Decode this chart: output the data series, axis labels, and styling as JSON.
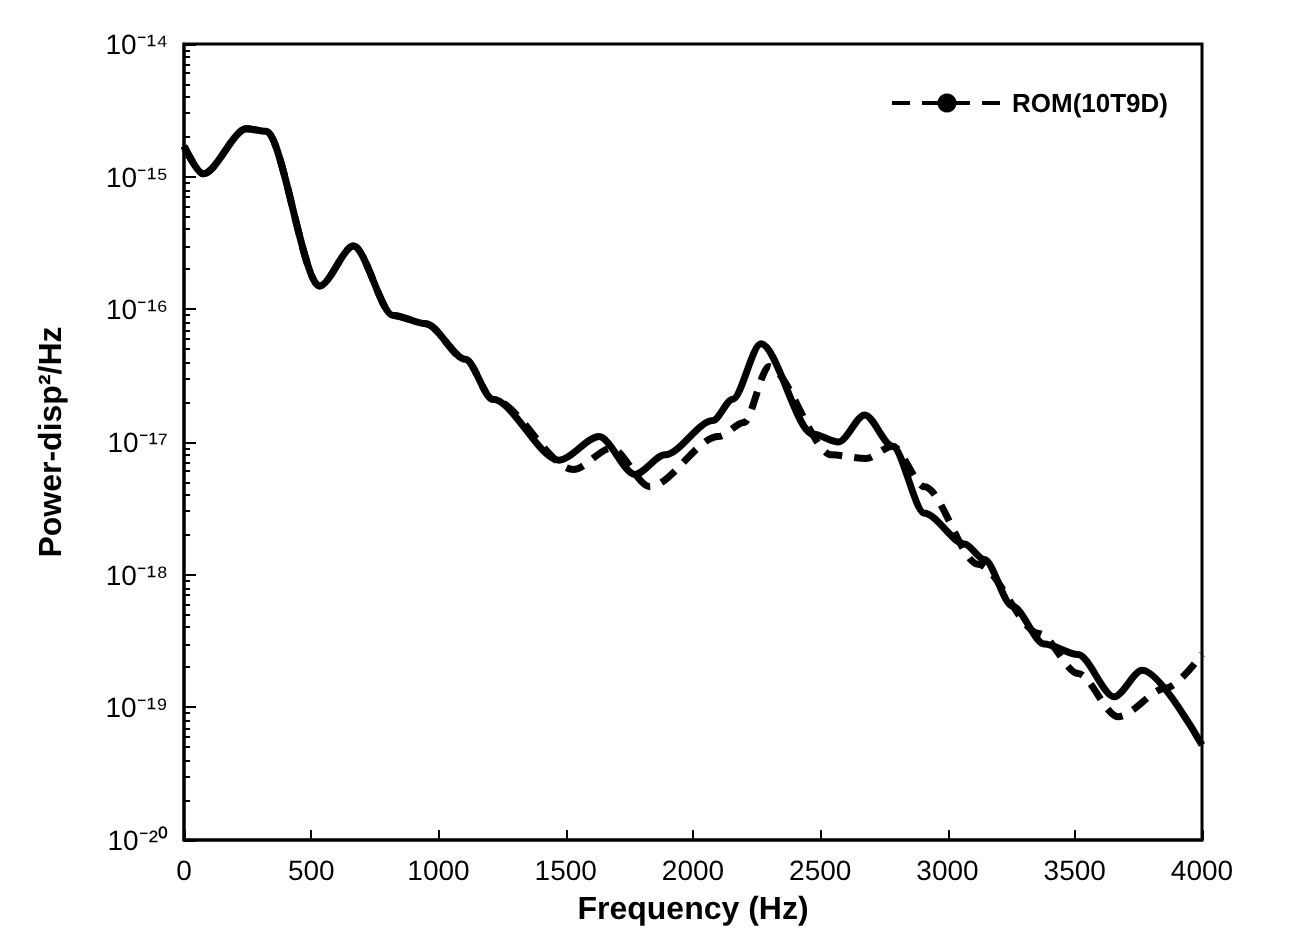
{
  "chart_data": {
    "type": "line",
    "xlabel": "Frequency (Hz)",
    "ylabel": "Power-disp²/Hz",
    "log": "y",
    "grid": false,
    "legend": "top right",
    "marker": "none",
    "xlim": [
      0,
      4000
    ],
    "xticks": [
      0,
      500,
      1000,
      1500,
      2000,
      2500,
      3000,
      3500,
      4000
    ],
    "ylim": [
      1e-20,
      1e-14
    ],
    "yticks": [
      {
        "value": 1e-20,
        "label": "10⁻²⁰"
      },
      {
        "value": 1e-19,
        "label": "10⁻¹⁹"
      },
      {
        "value": 1e-18,
        "label": "10⁻¹⁸"
      },
      {
        "value": 1e-17,
        "label": "10⁻¹⁷"
      },
      {
        "value": 1e-16,
        "label": "10⁻¹⁶"
      },
      {
        "value": 1e-15,
        "label": "10⁻¹⁵"
      },
      {
        "value": 1e-14,
        "label": "10⁻¹⁴"
      }
    ],
    "series": [
      {
        "color": "#000000",
        "line_style": "solid",
        "x": [
          0,
          76,
          245,
          322,
          533,
          666,
          822,
          950,
          1106,
          1213,
          1474,
          1631,
          1772,
          1890,
          2078,
          2156,
          2267,
          2470,
          2572,
          2675,
          2784,
          2910,
          3067,
          3145,
          3255,
          3380,
          3513,
          3655,
          3765,
          4000
        ],
        "values": [
          1.7e-15,
          1.05e-15,
          2.3e-15,
          2.2e-15,
          1.5e-16,
          3e-16,
          9e-17,
          7.8e-17,
          4.2e-17,
          2.1e-17,
          7.3e-18,
          1.1e-17,
          5.7e-18,
          8e-18,
          1.45e-17,
          2.1e-17,
          5.5e-17,
          1.15e-17,
          1e-17,
          1.6e-17,
          9.3e-18,
          2.9e-18,
          1.7e-18,
          1.3e-18,
          5.8e-19,
          3e-19,
          2.5e-19,
          1.2e-19,
          1.9e-19,
          5.2e-20
        ]
      },
      {
        "name": "ROM(10T9D)",
        "color": "#000000",
        "line_style": "dashed",
        "x": [
          0,
          76,
          245,
          322,
          533,
          666,
          822,
          950,
          1106,
          1213,
          1530,
          1680,
          1830,
          2100,
          2200,
          2298,
          2545,
          2680,
          2784,
          2910,
          3120,
          3360,
          3513,
          3670,
          3860,
          4000
        ],
        "values": [
          1.7e-15,
          1.05e-15,
          2.3e-15,
          2.2e-15,
          1.5e-16,
          3e-16,
          9e-17,
          7.8e-17,
          4.2e-17,
          2.1e-17,
          6.2e-18,
          9e-18,
          4.6e-18,
          1.1e-17,
          1.4e-17,
          3.7e-17,
          8e-18,
          7.5e-18,
          9.3e-18,
          4.6e-18,
          1.2e-18,
          3.6e-19,
          1.8e-19,
          8.5e-20,
          1.4e-19,
          2.5e-19
        ]
      }
    ]
  }
}
